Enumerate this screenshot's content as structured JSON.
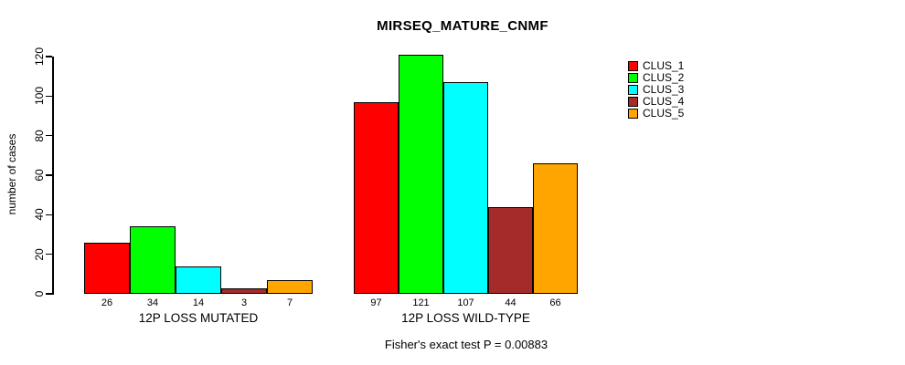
{
  "title": "MIRSEQ_MATURE_CNMF",
  "y_axis": {
    "label": "number of cases",
    "ticks": [
      0,
      20,
      40,
      60,
      80,
      100,
      120
    ]
  },
  "footer": "Fisher's exact test P = 0.00883",
  "legend": {
    "entries": [
      {
        "label": "CLUS_1",
        "color": "#FF0000"
      },
      {
        "label": "CLUS_2",
        "color": "#00FF00"
      },
      {
        "label": "CLUS_3",
        "color": "#00FFFF"
      },
      {
        "label": "CLUS_4",
        "color": "#A52A2A"
      },
      {
        "label": "CLUS_5",
        "color": "#FFA500"
      }
    ]
  },
  "chart_data": {
    "type": "bar",
    "title": "MIRSEQ_MATURE_CNMF",
    "ylabel": "number of cases",
    "xlabel": "",
    "ylim": [
      0,
      121
    ],
    "y_ticks": [
      0,
      20,
      40,
      60,
      80,
      100,
      120
    ],
    "grid": false,
    "legend_position": "top-right",
    "bar_value_labels": true,
    "categories": [
      "12P LOSS MUTATED",
      "12P LOSS WILD-TYPE"
    ],
    "series": [
      {
        "name": "CLUS_1",
        "color": "#FF0000",
        "values": [
          26,
          97
        ]
      },
      {
        "name": "CLUS_2",
        "color": "#00FF00",
        "values": [
          34,
          121
        ]
      },
      {
        "name": "CLUS_3",
        "color": "#00FFFF",
        "values": [
          14,
          107
        ]
      },
      {
        "name": "CLUS_4",
        "color": "#A52A2A",
        "values": [
          3,
          44
        ]
      },
      {
        "name": "CLUS_5",
        "color": "#FFA500",
        "values": [
          7,
          66
        ]
      }
    ],
    "annotation": "Fisher's exact test P = 0.00883"
  }
}
